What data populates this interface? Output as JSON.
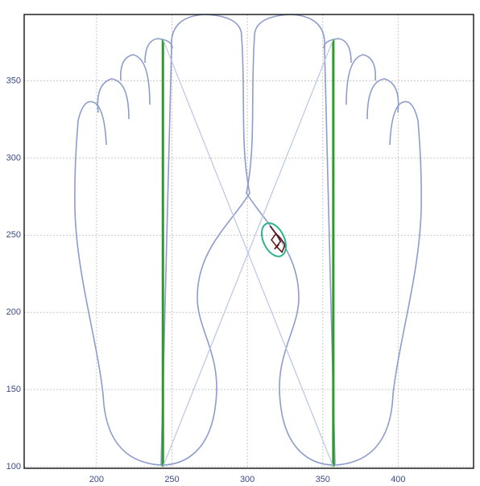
{
  "chart_data": {
    "type": "line",
    "xlim": [
      152,
      450
    ],
    "ylim": [
      99,
      393
    ],
    "xticks": [
      200,
      250,
      300,
      350,
      400
    ],
    "yticks": [
      100,
      150,
      200,
      250,
      300,
      350
    ],
    "grid": true,
    "series": [
      {
        "color": "#2e9a2e",
        "x": [
          244,
          244
        ],
        "values": [
          100,
          377
        ]
      },
      {
        "color": "#2e9a2e",
        "x": [
          357,
          357
        ],
        "values": [
          100,
          377
        ]
      },
      {
        "color": "#b8c6e6",
        "x": [
          244,
          357
        ],
        "values": [
          377,
          100
        ]
      },
      {
        "color": "#b8c6e6",
        "x": [
          357,
          244
        ],
        "values": [
          377,
          100
        ]
      },
      {
        "color": "#5a1010",
        "x": [
          315,
          318,
          322,
          325,
          323,
          320,
          316,
          319,
          322,
          318,
          321
        ],
        "values": [
          256,
          252,
          248,
          244,
          239,
          242,
          247,
          251,
          246,
          241,
          244
        ]
      }
    ]
  }
}
